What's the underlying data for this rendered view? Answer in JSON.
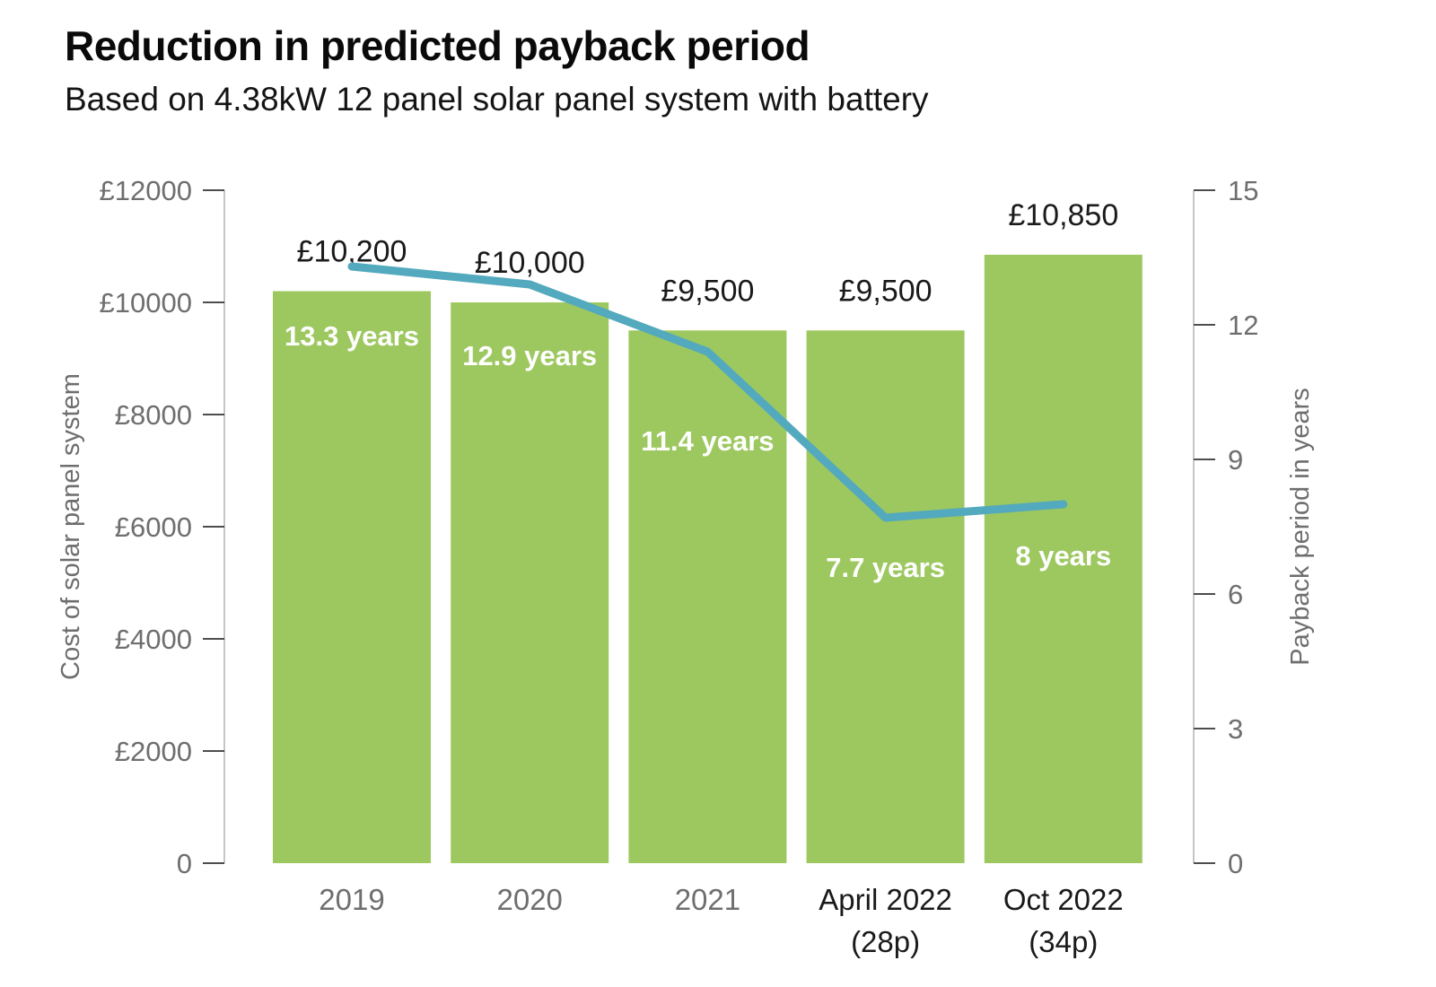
{
  "header": {
    "title": "Reduction in predicted payback period",
    "subtitle": "Based on 4.38kW 12 panel solar panel system with battery"
  },
  "chart_data": {
    "type": "bar",
    "title": "Reduction in predicted payback period",
    "subtitle": "Based on 4.38kW 12 panel solar panel system with battery",
    "categories": [
      [
        "2019"
      ],
      [
        "2020"
      ],
      [
        "2021"
      ],
      [
        "April 2022",
        "(28p)"
      ],
      [
        "Oct 2022",
        "(34p)"
      ]
    ],
    "series": [
      {
        "name": "Cost of solar panel system",
        "type": "bar",
        "axis": "left",
        "color": "#9dc860",
        "values": [
          10200,
          10000,
          9500,
          9500,
          10850
        ],
        "labels": [
          "£10,200",
          "£10,000",
          "£9,500",
          "£9,500",
          "£10,850"
        ]
      },
      {
        "name": "Payback period in years",
        "type": "line",
        "axis": "right",
        "color": "#53a9bd",
        "values": [
          13.3,
          12.9,
          11.4,
          7.7,
          8
        ],
        "labels": [
          "13.3 years",
          "12.9 years",
          "11.4 years",
          "7.7 years",
          "8 years"
        ]
      }
    ],
    "left_axis": {
      "title": "Cost of solar panel system",
      "range": [
        0,
        12000
      ],
      "ticks": [
        0,
        2000,
        4000,
        6000,
        8000,
        10000,
        12000
      ],
      "tick_labels": [
        "0",
        "£2000",
        "£4000",
        "£6000",
        "£8000",
        "£10000",
        "£12000"
      ]
    },
    "right_axis": {
      "title": "Payback period in years",
      "range": [
        0,
        15
      ],
      "ticks": [
        0,
        3,
        6,
        9,
        12,
        15
      ],
      "tick_labels": [
        "0",
        "3",
        "6",
        "9",
        "12",
        "15"
      ]
    },
    "grid": false,
    "legend": "none",
    "bar_label_color": "#1a1a1a",
    "line_label_color": "#ffffff",
    "axis_text_color": "#6e6e6e"
  }
}
